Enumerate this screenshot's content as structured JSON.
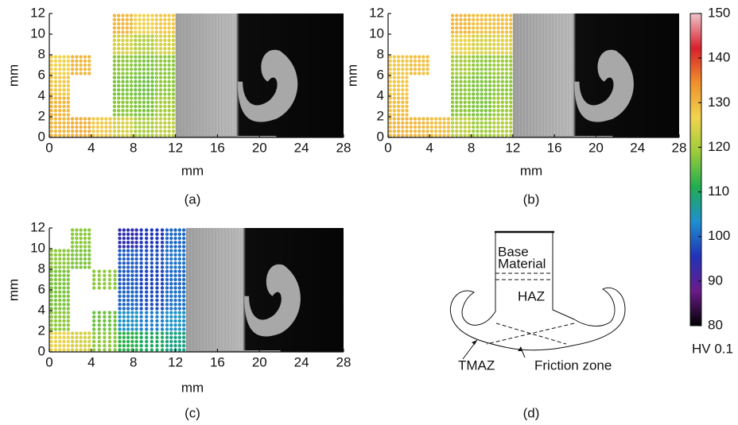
{
  "chart_data": [
    {
      "type": "heatmap",
      "caption": "(a)",
      "xlabel": "mm",
      "ylabel": "mm",
      "xlim": [
        0,
        28
      ],
      "ylim": [
        0,
        12
      ],
      "xticks": [
        0,
        4,
        8,
        12,
        16,
        20,
        24,
        28
      ],
      "yticks": [
        0,
        2,
        4,
        6,
        8,
        10,
        12
      ],
      "x_edges": [
        0,
        2,
        4,
        6,
        8,
        10,
        12
      ],
      "y_edges": [
        0,
        2,
        4,
        6,
        8,
        10,
        12
      ],
      "values": [
        [
          130,
          131,
          128,
          124,
          120,
          122
        ],
        [
          130,
          null,
          null,
          118,
          117,
          120
        ],
        [
          128,
          null,
          null,
          117,
          116,
          118
        ],
        [
          127,
          130,
          null,
          118,
          117,
          118
        ],
        [
          null,
          null,
          null,
          124,
          121,
          124
        ],
        [
          null,
          null,
          null,
          130,
          127,
          128
        ]
      ]
    },
    {
      "type": "heatmap",
      "caption": "(b)",
      "xlabel": "mm",
      "ylabel": "mm",
      "xlim": [
        0,
        28
      ],
      "ylim": [
        0,
        12
      ],
      "xticks": [
        0,
        4,
        8,
        12,
        16,
        20,
        24,
        28
      ],
      "yticks": [
        0,
        2,
        4,
        6,
        8,
        10,
        12
      ],
      "x_edges": [
        0,
        2,
        4,
        6,
        8,
        10,
        12
      ],
      "y_edges": [
        0,
        2,
        4,
        6,
        8,
        10,
        12
      ],
      "values": [
        [
          130,
          130,
          129,
          122,
          119,
          121
        ],
        [
          129,
          null,
          null,
          118,
          117,
          119
        ],
        [
          128,
          null,
          null,
          118,
          117,
          118
        ],
        [
          128,
          129,
          null,
          120,
          118,
          119
        ],
        [
          null,
          null,
          null,
          126,
          124,
          125
        ],
        [
          null,
          null,
          null,
          130,
          129,
          129
        ]
      ]
    },
    {
      "type": "heatmap",
      "caption": "(c)",
      "xlabel": "mm",
      "ylabel": "mm",
      "xlim": [
        0,
        28
      ],
      "ylim": [
        0,
        12
      ],
      "xticks": [
        0,
        4,
        8,
        12,
        16,
        20,
        24,
        28
      ],
      "yticks": [
        0,
        2,
        4,
        6,
        8,
        10,
        12
      ],
      "x_edges": [
        0,
        2,
        4,
        6.5,
        8.5,
        11,
        13
      ],
      "y_edges": [
        0,
        2,
        4,
        6,
        8,
        10,
        12
      ],
      "values": [
        [
          126,
          124,
          118,
          112,
          110,
          108
        ],
        [
          118,
          null,
          116,
          104,
          102,
          104
        ],
        [
          117,
          null,
          null,
          100,
          98,
          101
        ],
        [
          117,
          null,
          118,
          99,
          97,
          100
        ],
        [
          118,
          117,
          null,
          99,
          98,
          101
        ],
        [
          null,
          118,
          null,
          94,
          96,
          100
        ]
      ]
    }
  ],
  "colorbar": {
    "label": "HV 0.1",
    "clim": [
      80,
      150
    ],
    "ticks": [
      80,
      90,
      100,
      110,
      120,
      130,
      140,
      150
    ],
    "colors": [
      "#000000",
      "#6a1b8a",
      "#2133b8",
      "#1e8fd0",
      "#1fae50",
      "#9ccc3a",
      "#f2d44c",
      "#f0902c",
      "#d8202c",
      "#f0c4cc"
    ]
  },
  "diagram": {
    "caption": "(d)",
    "labels": [
      "Base",
      "Material",
      "HAZ",
      "TMAZ",
      "Friction zone"
    ]
  }
}
